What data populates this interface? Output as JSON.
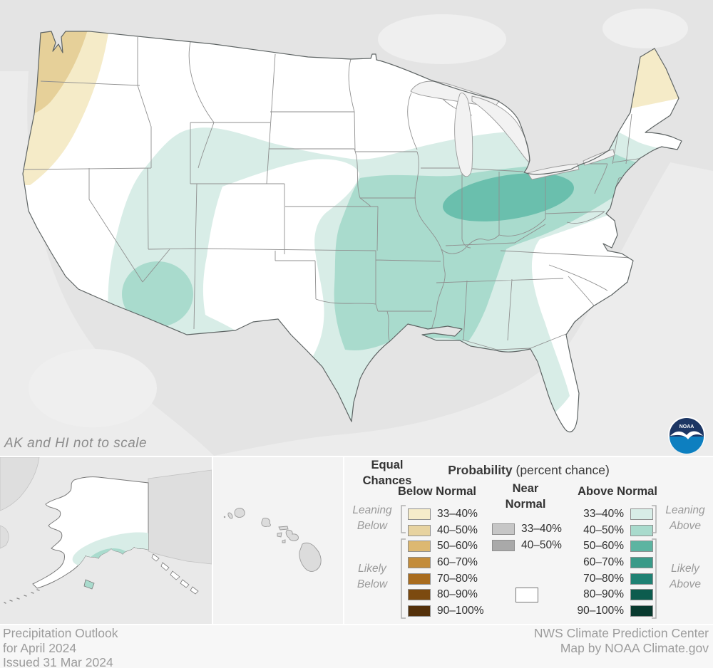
{
  "map": {
    "note": "AK and HI not to scale",
    "colors": {
      "background": "#e4e4e4",
      "ocean": "#ececec",
      "terrain": "#efefef",
      "conus_fill": "#ffffff",
      "outline": "#5e6464",
      "state_border": "#8f8f8f",
      "lake_fill": "#f2f2f2",
      "lake_border": "#9a9a9a",
      "above_33_40": "#d8ede7",
      "above_40_50": "#a9dbcd",
      "above_50_60": "#6abfad",
      "below_33_40": "#f5ebc8",
      "below_40_50": "#e6d099",
      "equal_chances": "#ffffff",
      "foreign_land": "#dedede",
      "island_fill": "#dcdcdc"
    }
  },
  "legend": {
    "title_bold": "Probability",
    "title_rest": " (percent chance)",
    "below": {
      "header": "Below Normal",
      "rows": [
        {
          "label": "33–40%",
          "color": "#f6ecca"
        },
        {
          "label": "40–50%",
          "color": "#e7d3a0"
        },
        {
          "label": "50–60%",
          "color": "#ddb871"
        },
        {
          "label": "60–70%",
          "color": "#c38c3a"
        },
        {
          "label": "70–80%",
          "color": "#a96c1e"
        },
        {
          "label": "80–90%",
          "color": "#7c4a10"
        },
        {
          "label": "90–100%",
          "color": "#53300a"
        }
      ]
    },
    "near": {
      "header_line1": "Near",
      "header_line2": "Normal",
      "rows": [
        {
          "label": "33–40%",
          "color": "#c6c6c6"
        },
        {
          "label": "40–50%",
          "color": "#a9a9a9"
        }
      ]
    },
    "above": {
      "header": "Above Normal",
      "rows": [
        {
          "label": "33–40%",
          "color": "#d8ede7"
        },
        {
          "label": "40–50%",
          "color": "#a9dbcd"
        },
        {
          "label": "50–60%",
          "color": "#5cb4a1"
        },
        {
          "label": "60–70%",
          "color": "#399a88"
        },
        {
          "label": "70–80%",
          "color": "#1f8173"
        },
        {
          "label": "80–90%",
          "color": "#0d5c4e"
        },
        {
          "label": "90–100%",
          "color": "#093a2f"
        }
      ]
    },
    "equal": {
      "label_line1": "Equal",
      "label_line2": "Chances",
      "color": "#ffffff"
    },
    "side_labels": {
      "leaning_below_1": "Leaning",
      "leaning_below_2": "Below",
      "likely_below_1": "Likely",
      "likely_below_2": "Below",
      "leaning_above_1": "Leaning",
      "leaning_above_2": "Above",
      "likely_above_1": "Likely",
      "likely_above_2": "Above"
    }
  },
  "logo": {
    "text": "NOAA",
    "navy": "#1c3664",
    "blue": "#0d7fc0"
  },
  "footer": {
    "left_line1": "Precipitation Outlook",
    "left_line2": "for April 2024",
    "left_line3": "Issued 31 Mar 2024",
    "right_line1": "NWS Climate Prediction Center",
    "right_line2": "Map by NOAA Climate.gov"
  }
}
